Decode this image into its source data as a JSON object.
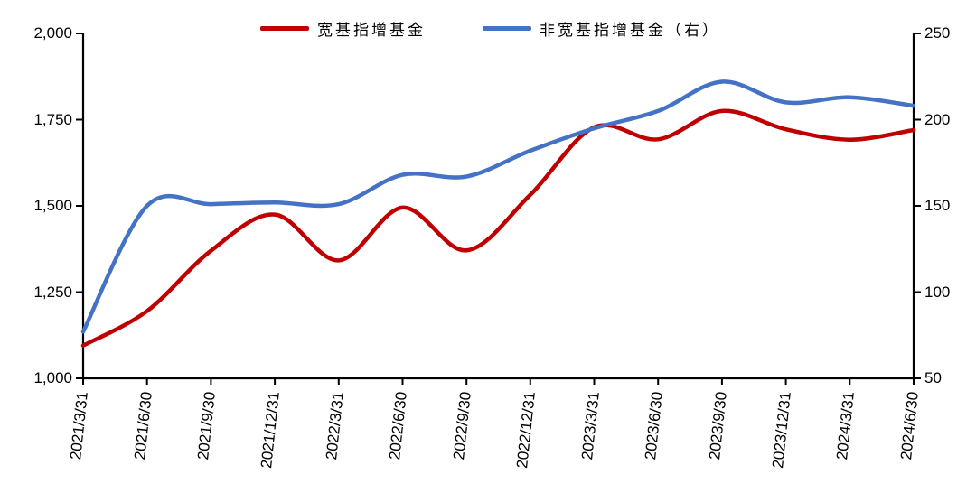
{
  "chart_data": {
    "type": "line",
    "smooth": true,
    "grid": false,
    "legend_position": "top",
    "x": [
      "2021/3/31",
      "2021/6/30",
      "2021/9/30",
      "2021/12/31",
      "2022/3/31",
      "2022/6/30",
      "2022/9/30",
      "2022/12/31",
      "2023/3/31",
      "2023/6/30",
      "2023/9/30",
      "2023/12/31",
      "2024/3/31",
      "2024/6/30"
    ],
    "series": [
      {
        "name": "宽基指增基金",
        "key": "broad-index-enhanced-funds",
        "axis": "left",
        "color": "#c00000",
        "values": [
          1095,
          1195,
          1370,
          1475,
          1342,
          1495,
          1371,
          1532,
          1728,
          1693,
          1775,
          1722,
          1692,
          1720
        ]
      },
      {
        "name": "非宽基指增基金（右）",
        "key": "non-broad-index-enhanced-funds",
        "axis": "right",
        "color": "#4472c4",
        "values": [
          77,
          150,
          151,
          152,
          151,
          168,
          167,
          182,
          195,
          205,
          222,
          210,
          213,
          208
        ]
      }
    ],
    "left_axis": {
      "min": 1000,
      "max": 2000,
      "tick_values": [
        2000,
        1750,
        1500,
        1250,
        1000
      ],
      "tick_labels": [
        "2,000",
        "1,750",
        "1,500",
        "1,250",
        "1,000"
      ]
    },
    "right_axis": {
      "min": 50,
      "max": 250,
      "tick_values": [
        250,
        200,
        150,
        100,
        50
      ],
      "tick_labels": [
        "250",
        "200",
        "150",
        "100",
        "50"
      ]
    },
    "axis_color": "#000000"
  }
}
